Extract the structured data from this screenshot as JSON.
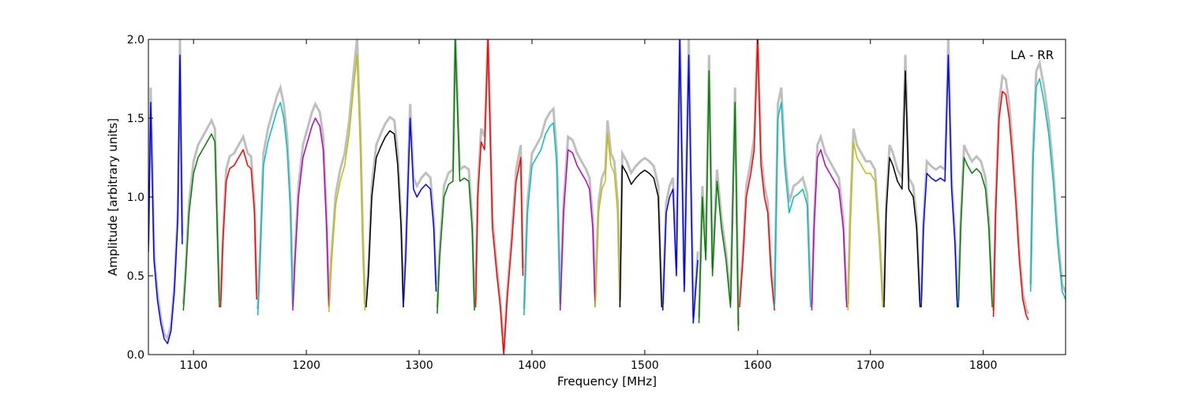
{
  "chart_data": {
    "type": "line",
    "title": "",
    "annotation": "LA - RR",
    "xlabel": "Frequency [MHz]",
    "ylabel": "Amplitude [arbitrary units]",
    "xlim": [
      1060,
      1873
    ],
    "ylim": [
      0.0,
      2.0
    ],
    "grid": false,
    "xticks": [
      1100,
      1200,
      1300,
      1400,
      1500,
      1600,
      1700,
      1800
    ],
    "xtick_labels": [
      "1100",
      "1200",
      "1300",
      "1400",
      "1500",
      "1600",
      "1700",
      "1800"
    ],
    "yticks": [
      0.0,
      0.5,
      1.0,
      1.5,
      2.0
    ],
    "ytick_labels": [
      "0.0",
      "0.5",
      "1.0",
      "1.5",
      "2.0"
    ],
    "background_series_color": "#bfbfbf",
    "series": [
      {
        "color": "#0000ff",
        "x": [
          1060,
          1062,
          1065,
          1068,
          1071,
          1074,
          1077,
          1080,
          1083,
          1086,
          1088,
          1090
        ],
        "y": [
          0.65,
          1.6,
          0.6,
          0.35,
          0.2,
          0.1,
          0.07,
          0.15,
          0.4,
          0.85,
          1.9,
          0.7
        ]
      },
      {
        "color": "#008000",
        "x": [
          1091,
          1093,
          1096,
          1100,
          1104,
          1108,
          1112,
          1116,
          1119,
          1121,
          1123
        ],
        "y": [
          0.28,
          0.5,
          0.9,
          1.15,
          1.25,
          1.3,
          1.35,
          1.4,
          1.35,
          0.8,
          0.3
        ]
      },
      {
        "color": "#ff0000",
        "x": [
          1124,
          1126,
          1129,
          1132,
          1136,
          1140,
          1144,
          1148,
          1151,
          1154,
          1156
        ],
        "y": [
          0.3,
          0.7,
          1.1,
          1.18,
          1.2,
          1.25,
          1.3,
          1.2,
          1.18,
          0.9,
          0.35
        ]
      },
      {
        "color": "#00bfbf",
        "x": [
          1157,
          1159,
          1162,
          1166,
          1170,
          1174,
          1177,
          1180,
          1183,
          1186,
          1188
        ],
        "y": [
          0.25,
          0.6,
          1.2,
          1.35,
          1.45,
          1.55,
          1.6,
          1.5,
          1.3,
          0.9,
          0.3
        ]
      },
      {
        "color": "#bf00bf",
        "x": [
          1188,
          1190,
          1193,
          1197,
          1201,
          1205,
          1208,
          1212,
          1215,
          1218,
          1220
        ],
        "y": [
          0.28,
          0.6,
          1.0,
          1.25,
          1.35,
          1.45,
          1.5,
          1.45,
          1.3,
          0.8,
          0.3
        ]
      },
      {
        "color": "#bfbf00",
        "x": [
          1220,
          1222,
          1226,
          1230,
          1234,
          1238,
          1242,
          1245,
          1248,
          1250,
          1252
        ],
        "y": [
          0.27,
          0.55,
          0.95,
          1.1,
          1.2,
          1.4,
          1.7,
          1.9,
          1.3,
          0.7,
          0.28
        ]
      },
      {
        "color": "#000000",
        "x": [
          1253,
          1255,
          1258,
          1262,
          1266,
          1270,
          1274,
          1278,
          1281,
          1284,
          1286
        ],
        "y": [
          0.3,
          0.5,
          1.0,
          1.25,
          1.32,
          1.38,
          1.42,
          1.4,
          1.2,
          0.8,
          0.3
        ]
      },
      {
        "color": "#0000ff",
        "x": [
          1286,
          1288,
          1292,
          1295,
          1298,
          1302,
          1306,
          1310,
          1313,
          1315
        ],
        "y": [
          0.3,
          0.6,
          1.5,
          1.05,
          1.0,
          1.05,
          1.08,
          1.05,
          0.8,
          0.4
        ]
      },
      {
        "color": "#008000",
        "x": [
          1316,
          1318,
          1322,
          1326,
          1330,
          1332,
          1336,
          1340,
          1344,
          1347,
          1349
        ],
        "y": [
          0.26,
          0.6,
          1.0,
          1.08,
          1.1,
          2.0,
          1.1,
          1.12,
          1.1,
          0.8,
          0.28
        ]
      },
      {
        "color": "#ff0000",
        "x": [
          1350,
          1352,
          1355,
          1358,
          1361,
          1365,
          1369,
          1372,
          1375,
          1378,
          1382,
          1386,
          1390,
          1392
        ],
        "y": [
          0.3,
          1.0,
          1.35,
          1.3,
          2.0,
          0.8,
          0.5,
          0.3,
          0.0,
          0.35,
          0.7,
          1.1,
          1.25,
          0.5
        ]
      },
      {
        "color": "#00bfbf",
        "x": [
          1393,
          1396,
          1400,
          1404,
          1408,
          1412,
          1416,
          1419,
          1422,
          1425
        ],
        "y": [
          0.25,
          0.9,
          1.2,
          1.25,
          1.3,
          1.4,
          1.45,
          1.47,
          1.2,
          0.3
        ]
      },
      {
        "color": "#bf00bf",
        "x": [
          1425,
          1428,
          1432,
          1436,
          1440,
          1444,
          1448,
          1451,
          1454,
          1456
        ],
        "y": [
          0.28,
          0.9,
          1.3,
          1.28,
          1.2,
          1.15,
          1.1,
          1.05,
          0.8,
          0.3
        ]
      },
      {
        "color": "#bfbf00",
        "x": [
          1456,
          1459,
          1462,
          1465,
          1467,
          1470,
          1473,
          1476,
          1478
        ],
        "y": [
          0.3,
          0.9,
          1.05,
          1.1,
          1.4,
          1.2,
          1.15,
          0.9,
          0.3
        ]
      },
      {
        "color": "#000000",
        "x": [
          1478,
          1480,
          1484,
          1488,
          1492,
          1496,
          1500,
          1504,
          1508,
          1512,
          1515
        ],
        "y": [
          0.3,
          1.2,
          1.15,
          1.08,
          1.12,
          1.15,
          1.17,
          1.15,
          1.12,
          1.0,
          0.3
        ]
      },
      {
        "color": "#0000ff",
        "x": [
          1516,
          1519,
          1522,
          1525,
          1528,
          1531,
          1535,
          1539,
          1543,
          1547
        ],
        "y": [
          0.28,
          0.9,
          1.0,
          1.05,
          0.5,
          2.0,
          0.4,
          1.9,
          0.2,
          0.6
        ]
      },
      {
        "color": "#008000",
        "x": [
          1548,
          1551,
          1554,
          1557,
          1560,
          1564,
          1568,
          1572,
          1576,
          1580,
          1583
        ],
        "y": [
          0.2,
          1.0,
          0.6,
          1.8,
          0.5,
          1.1,
          0.8,
          0.6,
          0.3,
          1.6,
          0.15
        ]
      },
      {
        "color": "#ff0000",
        "x": [
          1584,
          1587,
          1590,
          1594,
          1597,
          1600,
          1603,
          1606,
          1609,
          1612,
          1615
        ],
        "y": [
          0.3,
          0.6,
          1.0,
          1.15,
          1.3,
          2.0,
          1.2,
          1.0,
          0.9,
          0.5,
          0.28
        ]
      },
      {
        "color": "#00bfbf",
        "x": [
          1615,
          1618,
          1621,
          1624,
          1628,
          1632,
          1636,
          1640,
          1644,
          1647
        ],
        "y": [
          0.3,
          1.5,
          1.6,
          1.2,
          0.9,
          1.0,
          1.02,
          1.05,
          0.95,
          0.3
        ]
      },
      {
        "color": "#bf00bf",
        "x": [
          1648,
          1650,
          1653,
          1656,
          1660,
          1664,
          1668,
          1672,
          1676,
          1679
        ],
        "y": [
          0.28,
          0.8,
          1.25,
          1.3,
          1.2,
          1.15,
          1.1,
          1.05,
          0.8,
          0.3
        ]
      },
      {
        "color": "#bfbf00",
        "x": [
          1680,
          1682,
          1685,
          1688,
          1692,
          1696,
          1700,
          1704,
          1708,
          1711
        ],
        "y": [
          0.28,
          0.8,
          1.35,
          1.25,
          1.2,
          1.15,
          1.15,
          1.1,
          0.7,
          0.3
        ]
      },
      {
        "color": "#000000",
        "x": [
          1712,
          1714,
          1717,
          1720,
          1724,
          1728,
          1731,
          1734,
          1738,
          1741,
          1744
        ],
        "y": [
          0.3,
          0.9,
          1.25,
          1.2,
          1.1,
          1.05,
          1.8,
          1.05,
          1.0,
          0.8,
          0.3
        ]
      },
      {
        "color": "#0000ff",
        "x": [
          1745,
          1747,
          1750,
          1754,
          1758,
          1762,
          1766,
          1769,
          1772,
          1775,
          1777
        ],
        "y": [
          0.3,
          0.8,
          1.15,
          1.12,
          1.1,
          1.12,
          1.1,
          1.9,
          1.05,
          0.7,
          0.3
        ]
      },
      {
        "color": "#008000",
        "x": [
          1778,
          1780,
          1783,
          1786,
          1790,
          1794,
          1798,
          1802,
          1805,
          1808
        ],
        "y": [
          0.3,
          0.8,
          1.25,
          1.2,
          1.15,
          1.18,
          1.15,
          1.05,
          0.8,
          0.3
        ]
      },
      {
        "color": "#ff0000",
        "x": [
          1809,
          1811,
          1814,
          1817,
          1820,
          1823,
          1826,
          1829,
          1832,
          1835,
          1838,
          1840
        ],
        "y": [
          0.24,
          0.9,
          1.5,
          1.67,
          1.65,
          1.5,
          1.25,
          0.95,
          0.6,
          0.35,
          0.25,
          0.22
        ]
      },
      {
        "color": "#00bfbf",
        "x": [
          1842,
          1844,
          1847,
          1850,
          1854,
          1858,
          1862,
          1866,
          1870,
          1873
        ],
        "y": [
          0.4,
          1.2,
          1.7,
          1.75,
          1.6,
          1.4,
          1.1,
          0.7,
          0.4,
          0.35
        ]
      }
    ]
  }
}
